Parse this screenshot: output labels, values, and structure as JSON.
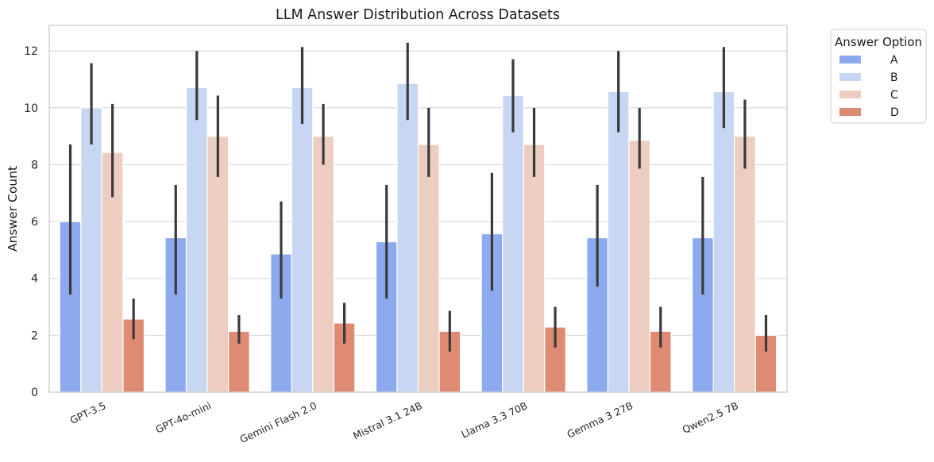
{
  "chart_data": {
    "type": "bar",
    "title": "LLM Answer Distribution Across Datasets",
    "xlabel": "",
    "ylabel": "Answer Count",
    "ylim": [
      0,
      12.9
    ],
    "yticks": [
      0,
      2,
      4,
      6,
      8,
      10,
      12
    ],
    "grid": true,
    "legend": {
      "title": "Answer Option",
      "placement": "outside-top-right"
    },
    "categories": [
      "GPT-3.5",
      "GPT-4o-mini",
      "Gemini Flash 2.0",
      "Mistral 3.1 24B",
      "Llama 3.3 70B",
      "Gemma 3 27B",
      "Qwen2.5 7B"
    ],
    "series": [
      {
        "name": "A",
        "color": "#8caaed",
        "values": [
          6.0,
          5.43,
          4.86,
          5.29,
          5.57,
          5.43,
          5.43
        ],
        "ci_low": [
          3.43,
          3.43,
          3.29,
          3.29,
          3.57,
          3.71,
          3.43
        ],
        "ci_high": [
          8.71,
          7.29,
          6.71,
          7.29,
          7.71,
          7.29,
          7.57
        ]
      },
      {
        "name": "B",
        "color": "#c7d6f2",
        "values": [
          10.0,
          10.71,
          10.71,
          10.86,
          10.43,
          10.57,
          10.57
        ],
        "ci_low": [
          8.71,
          9.57,
          9.43,
          9.57,
          9.14,
          9.14,
          9.29
        ],
        "ci_high": [
          11.57,
          12.0,
          12.14,
          12.29,
          11.71,
          12.0,
          12.14
        ]
      },
      {
        "name": "C",
        "color": "#eccdbf",
        "values": [
          8.43,
          9.0,
          9.0,
          8.71,
          8.71,
          8.86,
          9.0
        ],
        "ci_low": [
          6.86,
          7.57,
          8.0,
          7.57,
          7.57,
          7.86,
          7.86
        ],
        "ci_high": [
          10.14,
          10.43,
          10.14,
          10.0,
          10.0,
          10.0,
          10.29
        ]
      },
      {
        "name": "D",
        "color": "#df8b74",
        "values": [
          2.57,
          2.14,
          2.43,
          2.14,
          2.29,
          2.14,
          2.0
        ],
        "ci_low": [
          1.86,
          1.71,
          1.71,
          1.43,
          1.57,
          1.57,
          1.43
        ],
        "ci_high": [
          3.29,
          2.71,
          3.14,
          2.86,
          3.0,
          3.0,
          2.71
        ]
      }
    ]
  }
}
